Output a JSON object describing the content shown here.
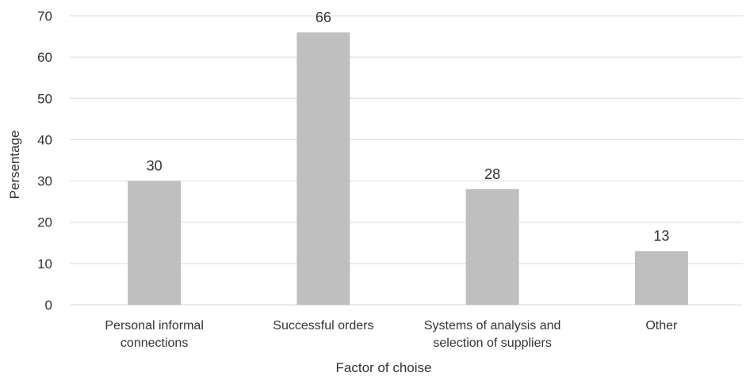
{
  "chart_data": {
    "type": "bar",
    "categories": [
      [
        "Personal informal",
        "connections"
      ],
      [
        "Successful orders"
      ],
      [
        "Systems of analysis and",
        "selection of suppliers"
      ],
      [
        "Other"
      ]
    ],
    "values": [
      30,
      66,
      28,
      13
    ],
    "data_labels": [
      "30",
      "66",
      "28",
      "13"
    ],
    "xlabel": "Factor of choise",
    "ylabel": "Persentage",
    "ylim": [
      0,
      70
    ],
    "yticks": [
      0,
      10,
      20,
      30,
      40,
      50,
      60,
      70
    ],
    "grid": true,
    "bar_color": "#bfbfbf",
    "grid_color": "#d9d9d9"
  }
}
